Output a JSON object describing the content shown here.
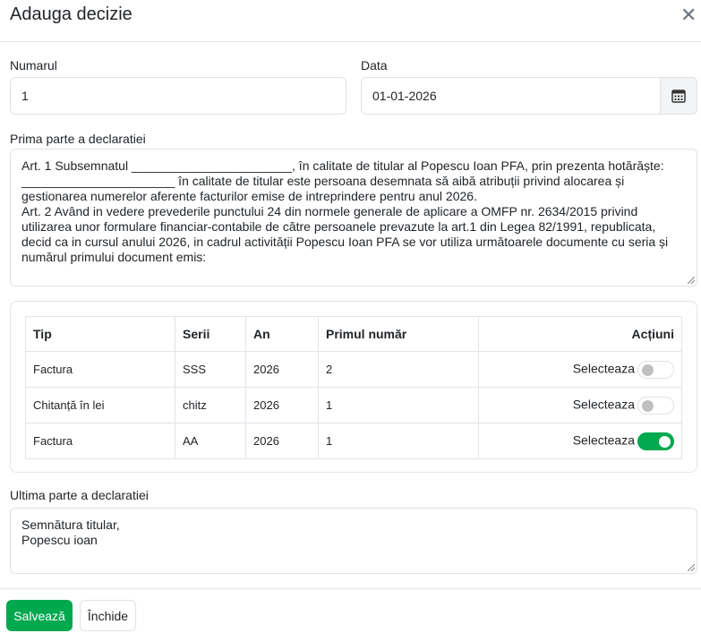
{
  "modal": {
    "title": "Adauga decizie",
    "close_icon": "close-icon"
  },
  "form": {
    "numarul_label": "Numarul",
    "numarul_value": "1",
    "data_label": "Data",
    "data_value": "01-01-2026",
    "calendar_icon": "calendar-icon",
    "prima_label": "Prima parte a declaratiei",
    "prima_value": "Art. 1 Subsemnatul _______________________, în calitate de titular al Popescu Ioan PFA, prin prezenta hotărăște:\n______________________ în calitate de titular este persoana desemnata să aibă atribuții privind alocarea și gestionarea numerelor aferente facturilor emise de intreprindere pentru anul 2026.\nArt. 2 Având in vedere prevederile punctului 24 din normele generale de aplicare a OMFP nr. 2634/2015 privind utilizarea unor formulare financiar-contabile de către persoanele prevazute la art.1 din Legea 82/1991, republicata, decid ca in cursul anului 2026, in cadrul activității Popescu Ioan PFA se vor utiliza următoarele documente cu seria și numărul primului document emis:",
    "ultima_label": "Ultima parte a declaratiei",
    "ultima_value": "Semnătura titular,\nPopescu ioan"
  },
  "table": {
    "headers": [
      "Tip",
      "Serii",
      "An",
      "Primul număr",
      "Acțiuni"
    ],
    "rows": [
      {
        "tip": "Factura",
        "serii": "SSS",
        "an": "2026",
        "primul": "2",
        "action": "Selecteaza",
        "selected": false
      },
      {
        "tip": "Chitanță în lei",
        "serii": "chitz",
        "an": "2026",
        "primul": "1",
        "action": "Selecteaza",
        "selected": false
      },
      {
        "tip": "Factura",
        "serii": "AA",
        "an": "2026",
        "primul": "1",
        "action": "Selecteaza",
        "selected": true
      }
    ]
  },
  "footer": {
    "save_label": "Salvează",
    "close_label": "Închide"
  },
  "colors": {
    "accent": "#00a84e"
  }
}
